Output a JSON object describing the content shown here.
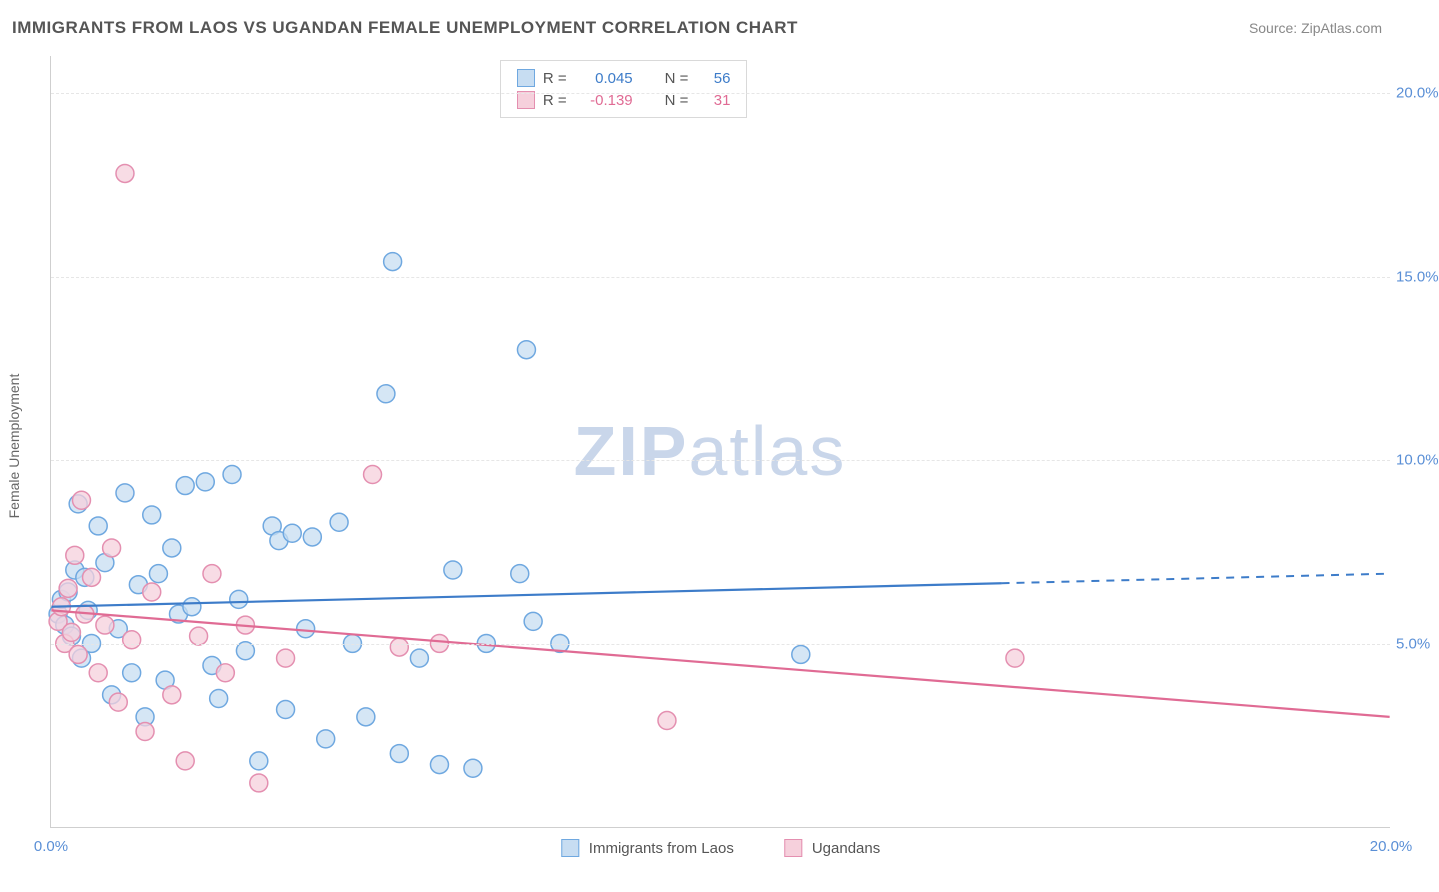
{
  "title": "IMMIGRANTS FROM LAOS VS UGANDAN FEMALE UNEMPLOYMENT CORRELATION CHART",
  "source_label": "Source: ZipAtlas.com",
  "y_axis_label": "Female Unemployment",
  "watermark": {
    "bold": "ZIP",
    "light": "atlas",
    "color": "#c9d6ea"
  },
  "chart": {
    "type": "scatter",
    "background_color": "#ffffff",
    "grid_color": "#e6e6e6",
    "axis_color": "#cfcfcf",
    "xlim": [
      0,
      20
    ],
    "ylim": [
      0,
      21
    ],
    "x_ticks": [
      {
        "v": 0,
        "label": "0.0%"
      },
      {
        "v": 20,
        "label": "20.0%"
      }
    ],
    "y_ticks": [
      {
        "v": 5,
        "label": "5.0%"
      },
      {
        "v": 10,
        "label": "10.0%"
      },
      {
        "v": 15,
        "label": "15.0%"
      },
      {
        "v": 20,
        "label": "20.0%"
      }
    ],
    "x_tick_color": "#5a8fd6",
    "y_tick_color": "#5a8fd6",
    "marker_radius": 9,
    "marker_stroke_width": 1.5,
    "series": [
      {
        "id": "laos",
        "label": "Immigrants from Laos",
        "fill": "#c7ddf2",
        "stroke": "#6fa8e0",
        "line_color": "#3d7cc9",
        "R": "0.045",
        "N": "56",
        "trend": {
          "x1": 0,
          "y1": 6.0,
          "x2": 20,
          "y2": 6.9,
          "solid_until_x": 14.2
        },
        "points": [
          [
            0.1,
            5.8
          ],
          [
            0.15,
            6.2
          ],
          [
            0.2,
            5.5
          ],
          [
            0.25,
            6.4
          ],
          [
            0.3,
            5.2
          ],
          [
            0.35,
            7.0
          ],
          [
            0.4,
            8.8
          ],
          [
            0.45,
            4.6
          ],
          [
            0.5,
            6.8
          ],
          [
            0.6,
            5.0
          ],
          [
            0.7,
            8.2
          ],
          [
            0.8,
            7.2
          ],
          [
            0.9,
            3.6
          ],
          [
            1.0,
            5.4
          ],
          [
            1.1,
            9.1
          ],
          [
            1.2,
            4.2
          ],
          [
            1.3,
            6.6
          ],
          [
            1.4,
            3.0
          ],
          [
            1.5,
            8.5
          ],
          [
            1.7,
            4.0
          ],
          [
            1.8,
            7.6
          ],
          [
            1.9,
            5.8
          ],
          [
            2.0,
            9.3
          ],
          [
            2.1,
            6.0
          ],
          [
            2.3,
            9.4
          ],
          [
            2.4,
            4.4
          ],
          [
            2.7,
            9.6
          ],
          [
            2.8,
            6.2
          ],
          [
            2.9,
            4.8
          ],
          [
            3.1,
            1.8
          ],
          [
            3.3,
            8.2
          ],
          [
            3.4,
            7.8
          ],
          [
            3.5,
            3.2
          ],
          [
            3.6,
            8.0
          ],
          [
            3.8,
            5.4
          ],
          [
            3.9,
            7.9
          ],
          [
            4.1,
            2.4
          ],
          [
            4.3,
            8.3
          ],
          [
            4.5,
            5.0
          ],
          [
            4.7,
            3.0
          ],
          [
            5.0,
            11.8
          ],
          [
            5.1,
            15.4
          ],
          [
            5.2,
            2.0
          ],
          [
            5.5,
            4.6
          ],
          [
            5.8,
            1.7
          ],
          [
            6.0,
            7.0
          ],
          [
            6.3,
            1.6
          ],
          [
            6.5,
            5.0
          ],
          [
            7.0,
            6.9
          ],
          [
            7.2,
            5.6
          ],
          [
            7.1,
            13.0
          ],
          [
            11.2,
            4.7
          ],
          [
            7.6,
            5.0
          ],
          [
            2.5,
            3.5
          ],
          [
            1.6,
            6.9
          ],
          [
            0.55,
            5.9
          ]
        ]
      },
      {
        "id": "ugandans",
        "label": "Ugandans",
        "fill": "#f6d0dc",
        "stroke": "#e48fb0",
        "line_color": "#e06b94",
        "R": "-0.139",
        "N": "31",
        "trend": {
          "x1": 0,
          "y1": 5.9,
          "x2": 20,
          "y2": 3.0,
          "solid_until_x": 20
        },
        "points": [
          [
            0.1,
            5.6
          ],
          [
            0.15,
            6.0
          ],
          [
            0.2,
            5.0
          ],
          [
            0.25,
            6.5
          ],
          [
            0.3,
            5.3
          ],
          [
            0.35,
            7.4
          ],
          [
            0.4,
            4.7
          ],
          [
            0.45,
            8.9
          ],
          [
            0.5,
            5.8
          ],
          [
            0.6,
            6.8
          ],
          [
            0.7,
            4.2
          ],
          [
            0.9,
            7.6
          ],
          [
            1.0,
            3.4
          ],
          [
            1.1,
            17.8
          ],
          [
            1.2,
            5.1
          ],
          [
            1.4,
            2.6
          ],
          [
            1.5,
            6.4
          ],
          [
            1.8,
            3.6
          ],
          [
            2.0,
            1.8
          ],
          [
            2.2,
            5.2
          ],
          [
            2.4,
            6.9
          ],
          [
            2.6,
            4.2
          ],
          [
            2.9,
            5.5
          ],
          [
            3.1,
            1.2
          ],
          [
            3.5,
            4.6
          ],
          [
            4.8,
            9.6
          ],
          [
            5.2,
            4.9
          ],
          [
            5.8,
            5.0
          ],
          [
            9.2,
            2.9
          ],
          [
            14.4,
            4.6
          ],
          [
            0.8,
            5.5
          ]
        ]
      }
    ]
  },
  "legend_top": {
    "R_label": "R =",
    "N_label": "N ="
  }
}
